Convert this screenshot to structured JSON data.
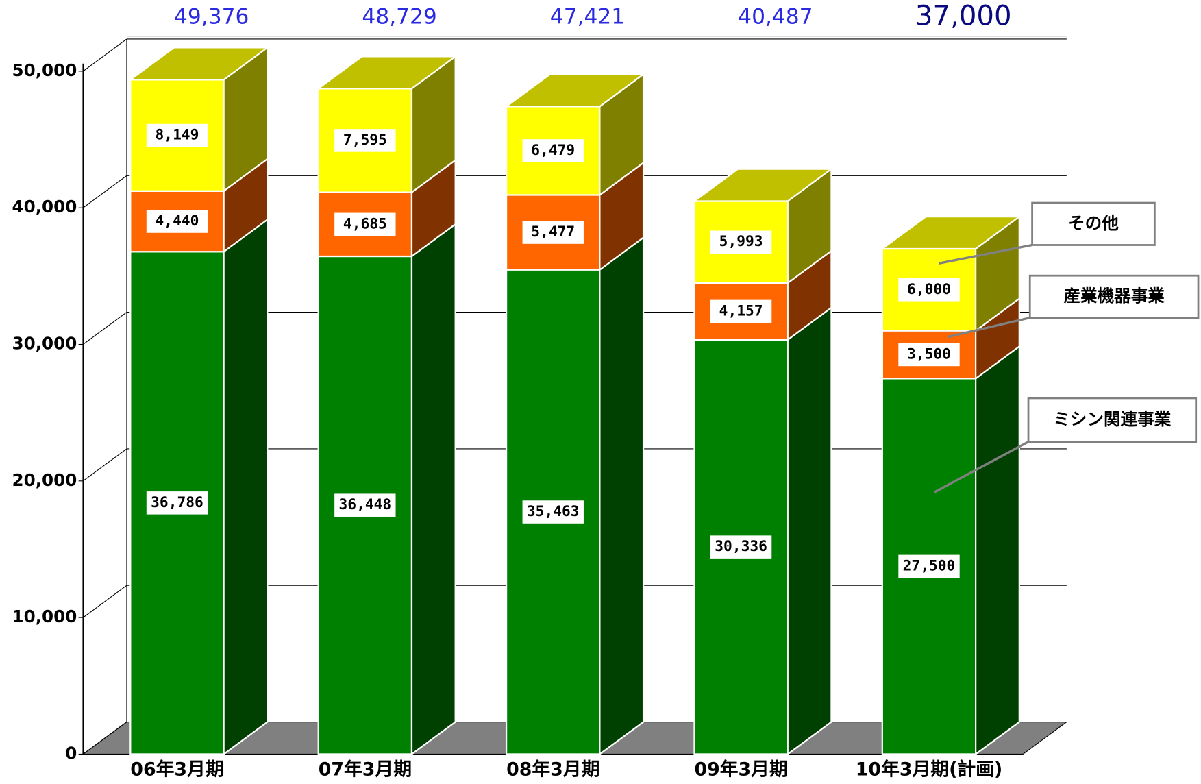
{
  "chart_data": {
    "type": "bar3d_stacked",
    "categories": [
      "06年3月期",
      "07年3月期",
      "08年3月期",
      "09年3月期",
      "10年3月期(計画)"
    ],
    "series": [
      {
        "name": "ミシン関連事業",
        "color": "#008000",
        "side_color": "#004000",
        "values": [
          36786,
          36448,
          35463,
          30336,
          27500
        ],
        "value_labels": [
          "36,786",
          "36,448",
          "35,463",
          "30,336",
          "27,500"
        ]
      },
      {
        "name": "産業機器事業",
        "color": "#ff6600",
        "side_color": "#803300",
        "values": [
          4440,
          4685,
          5477,
          4157,
          3500
        ],
        "value_labels": [
          "4,440",
          "4,685",
          "5,477",
          "4,157",
          "3,500"
        ]
      },
      {
        "name": "その他",
        "color": "#ffff00",
        "side_color": "#808000",
        "top_color": "#c0c000",
        "values": [
          8149,
          7595,
          6479,
          5993,
          6000
        ],
        "value_labels": [
          "8,149",
          "7,595",
          "6,479",
          "5,993",
          "6,000"
        ]
      }
    ],
    "totals": {
      "values": [
        49376,
        48729,
        47421,
        40487,
        37000
      ],
      "value_labels": [
        "49,376",
        "48,729",
        "47,421",
        "40,487",
        "37,000"
      ]
    },
    "ylim": [
      0,
      50000
    ],
    "yticks": [
      0,
      {
        "value": 10000,
        "label": "10,000"
      },
      {
        "value": 20000,
        "label": "20,000"
      },
      {
        "value": 30000,
        "label": "30,000"
      },
      {
        "value": 40000,
        "label": "40,000"
      },
      {
        "value": 50000,
        "label": "50,000"
      }
    ],
    "grid": true
  }
}
